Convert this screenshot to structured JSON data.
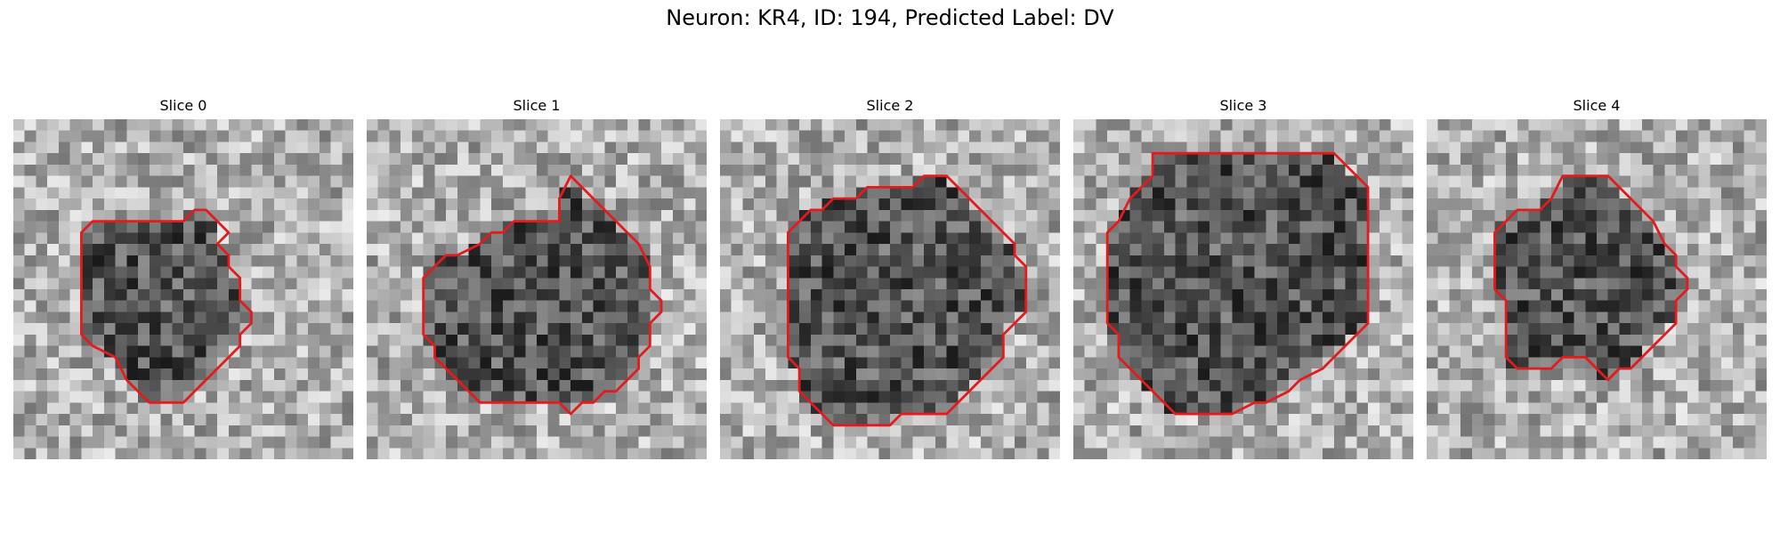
{
  "figure": {
    "title": "Neuron: KR4, ID: 194, Predicted Label: DV"
  },
  "style": {
    "contour_color": "#e41a1c",
    "colormap": "gray"
  },
  "panels": [
    {
      "title": "Slice 0",
      "contour": [
        [
          11,
          9
        ],
        [
          15,
          9
        ],
        [
          16,
          8
        ],
        [
          17,
          8
        ],
        [
          19,
          10
        ],
        [
          18,
          11
        ],
        [
          19,
          12
        ],
        [
          19,
          13
        ],
        [
          20,
          14
        ],
        [
          20,
          16
        ],
        [
          21,
          17
        ],
        [
          21,
          18
        ],
        [
          20,
          19
        ],
        [
          20,
          20
        ],
        [
          19,
          21
        ],
        [
          17,
          23
        ],
        [
          16,
          24
        ],
        [
          15,
          25
        ],
        [
          12,
          25
        ],
        [
          11,
          24
        ],
        [
          10,
          23
        ],
        [
          9,
          21
        ],
        [
          7,
          20
        ],
        [
          6,
          19
        ],
        [
          6,
          10
        ],
        [
          7,
          9
        ]
      ]
    },
    {
      "title": "Slice 1",
      "contour": [
        [
          17,
          7
        ],
        [
          18,
          5
        ],
        [
          19,
          6
        ],
        [
          20,
          7
        ],
        [
          21,
          8
        ],
        [
          22,
          9
        ],
        [
          23,
          10
        ],
        [
          24,
          11
        ],
        [
          25,
          13
        ],
        [
          25,
          15
        ],
        [
          26,
          16
        ],
        [
          26,
          17
        ],
        [
          25,
          18
        ],
        [
          25,
          20
        ],
        [
          24,
          21
        ],
        [
          24,
          22
        ],
        [
          23,
          23
        ],
        [
          22,
          24
        ],
        [
          21,
          24
        ],
        [
          20,
          25
        ],
        [
          19,
          25
        ],
        [
          18,
          26
        ],
        [
          17,
          25
        ],
        [
          10,
          25
        ],
        [
          8,
          23
        ],
        [
          7,
          22
        ],
        [
          6,
          21
        ],
        [
          6,
          20
        ],
        [
          5,
          19
        ],
        [
          5,
          14
        ],
        [
          6,
          13
        ],
        [
          7,
          12
        ],
        [
          8,
          12
        ],
        [
          10,
          11
        ],
        [
          11,
          10
        ],
        [
          12,
          10
        ],
        [
          13,
          9
        ],
        [
          17,
          9
        ]
      ]
    },
    {
      "title": "Slice 2",
      "contour": [
        [
          18,
          5
        ],
        [
          20,
          5
        ],
        [
          21,
          6
        ],
        [
          22,
          7
        ],
        [
          24,
          9
        ],
        [
          25,
          10
        ],
        [
          26,
          11
        ],
        [
          26,
          12
        ],
        [
          27,
          13
        ],
        [
          27,
          17
        ],
        [
          26,
          18
        ],
        [
          25,
          19
        ],
        [
          25,
          21
        ],
        [
          24,
          22
        ],
        [
          23,
          23
        ],
        [
          22,
          24
        ],
        [
          21,
          25
        ],
        [
          20,
          26
        ],
        [
          16,
          26
        ],
        [
          15,
          27
        ],
        [
          10,
          27
        ],
        [
          9,
          26
        ],
        [
          8,
          25
        ],
        [
          7,
          24
        ],
        [
          7,
          22
        ],
        [
          6,
          21
        ],
        [
          6,
          10
        ],
        [
          7,
          9
        ],
        [
          8,
          8
        ],
        [
          9,
          8
        ],
        [
          10,
          7
        ],
        [
          12,
          7
        ],
        [
          13,
          6
        ],
        [
          17,
          6
        ]
      ]
    },
    {
      "title": "Slice 3",
      "contour": [
        [
          7,
          3
        ],
        [
          23,
          3
        ],
        [
          24,
          4
        ],
        [
          25,
          5
        ],
        [
          26,
          6
        ],
        [
          26,
          7
        ],
        [
          26,
          18
        ],
        [
          25,
          19
        ],
        [
          24,
          20
        ],
        [
          23,
          21
        ],
        [
          22,
          22
        ],
        [
          20,
          23
        ],
        [
          19,
          24
        ],
        [
          17,
          25
        ],
        [
          16,
          25
        ],
        [
          14,
          26
        ],
        [
          9,
          26
        ],
        [
          8,
          25
        ],
        [
          7,
          24
        ],
        [
          6,
          23
        ],
        [
          5,
          22
        ],
        [
          4,
          21
        ],
        [
          4,
          19
        ],
        [
          3,
          18
        ],
        [
          3,
          10
        ],
        [
          4,
          9
        ],
        [
          5,
          7
        ],
        [
          6,
          6
        ],
        [
          7,
          5
        ]
      ]
    },
    {
      "title": "Slice 4",
      "contour": [
        [
          12,
          5
        ],
        [
          16,
          5
        ],
        [
          17,
          6
        ],
        [
          18,
          7
        ],
        [
          19,
          8
        ],
        [
          20,
          9
        ],
        [
          21,
          11
        ],
        [
          22,
          12
        ],
        [
          22,
          13
        ],
        [
          23,
          14
        ],
        [
          23,
          15
        ],
        [
          22,
          16
        ],
        [
          22,
          18
        ],
        [
          21,
          19
        ],
        [
          20,
          20
        ],
        [
          19,
          21
        ],
        [
          18,
          22
        ],
        [
          17,
          22
        ],
        [
          16,
          23
        ],
        [
          15,
          22
        ],
        [
          14,
          21
        ],
        [
          12,
          21
        ],
        [
          11,
          22
        ],
        [
          8,
          22
        ],
        [
          7,
          21
        ],
        [
          7,
          20
        ],
        [
          7,
          16
        ],
        [
          6,
          15
        ],
        [
          6,
          10
        ],
        [
          7,
          9
        ],
        [
          8,
          8
        ],
        [
          10,
          8
        ],
        [
          11,
          7
        ]
      ]
    }
  ]
}
